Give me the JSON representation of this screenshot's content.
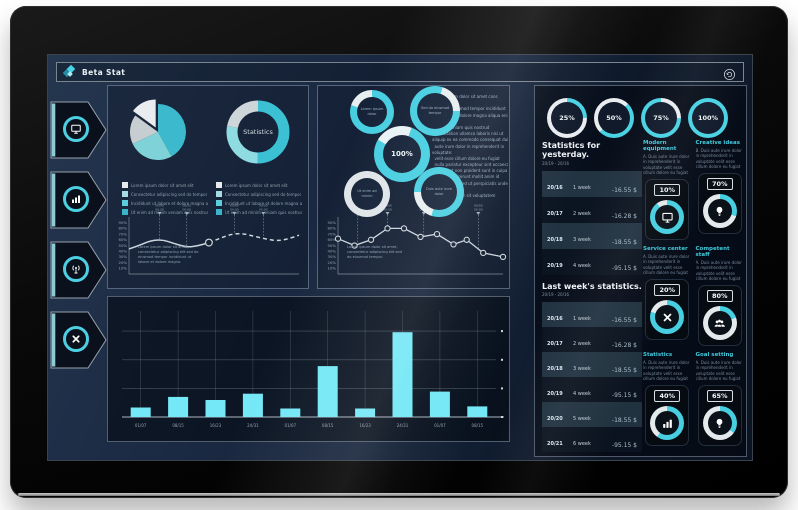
{
  "header": {
    "title": "Beta Stat"
  },
  "colors": {
    "accent_cyan": "#4ad2e6",
    "bar_cyan": "#74e8f6",
    "panel_border": "#96a8b9",
    "screen_navy": "#16243c",
    "legend_swatches": [
      "#e6eaec",
      "#a6dbe3",
      "#5ecddb",
      "#39b4c8"
    ]
  },
  "sidebar": {
    "items": [
      {
        "icon": "monitor-icon"
      },
      {
        "icon": "bar-chart-icon"
      },
      {
        "icon": "antenna-icon"
      },
      {
        "icon": "close-icon"
      }
    ]
  },
  "legends": {
    "left": [
      "Lorem ipsum dolor sit amet elit",
      "Consectetur adipiscing sed do tempor",
      "Incididunt ut labore et dolore magna aliqua",
      "Ut enim ad minim veniam quis nostrud"
    ],
    "right": [
      "Lorem ipsum dolor sit amet elit",
      "Consectetur adipiscing sed do tempor",
      "Incididunt ut labore et dolore magna aliqua",
      "Ut enim ad minim veniam quis nostrud"
    ]
  },
  "code_lines": [
    "Lorem ipsum dolor sit amet cons",
    "  elit:",
    "    sed do eiusmod tempor incididunt",
    "  ut labore et dolore magna aliqua enim",
    "ad:",
    "  minim veniam quis nostrud",
    "  exercitation ullamco laboris nisi ut",
    "aliquip ex ea commodo consequat duis",
    "  aute irure dolor in reprehenderit in",
    "voluptate:",
    "  velit esse cillum dolore eu fugiat",
    "  nulla pariatur excepteur sint occaecat",
    "  cupidatat non proident sunt in culpa",
    "qui officia deserunt mollit anim id",
    "  est laborum sed ut perspiciatis unde",
    "omnis:",
    "  iste natus error sit voluptatem",
    "accusantium"
  ],
  "chart_data": [
    {
      "id": "pie-left",
      "type": "pie",
      "values": [
        42,
        26,
        17,
        15
      ],
      "colors": [
        "#3cb9cd",
        "#7fd2d8",
        "#c7ced1",
        "#e9edef"
      ],
      "exploded_index": 3
    },
    {
      "id": "donut-statistics",
      "type": "pie",
      "donut": true,
      "label": "Statistics",
      "values": [
        50,
        28,
        22
      ],
      "colors": [
        "#3cc0d3",
        "#8fdbe2",
        "#cfd6d9"
      ]
    },
    {
      "id": "line-left",
      "type": "line",
      "ylim": [
        0,
        100
      ],
      "yticks": [
        "90%",
        "80%",
        "70%",
        "60%",
        "50%",
        "40%",
        "30%",
        "20%",
        "10%"
      ],
      "points": [
        [
          0,
          44
        ],
        [
          0.06,
          50
        ],
        [
          0.13,
          59
        ],
        [
          0.2,
          60
        ],
        [
          0.27,
          53
        ],
        [
          0.34,
          47
        ],
        [
          0.4,
          49
        ],
        [
          0.47,
          55
        ],
        [
          0.53,
          62
        ],
        [
          0.6,
          70
        ],
        [
          0.67,
          71
        ],
        [
          0.74,
          66
        ],
        [
          0.81,
          61
        ],
        [
          0.88,
          58
        ],
        [
          0.94,
          62
        ],
        [
          1,
          68
        ]
      ],
      "solid_until_index": 7,
      "marker_index": 7,
      "callouts": [
        0.18,
        0.34,
        0.62,
        0.79
      ],
      "callout_label": [
        "00/00",
        "00:00"
      ],
      "note_lines": [
        "Lorem ipsum dolor sit amet,",
        "consectetur adipiscing elit sed do",
        "eiusmod tempor incididunt ut",
        "labore et dolore magna."
      ]
    },
    {
      "id": "line-center",
      "type": "line",
      "ylim": [
        0,
        100
      ],
      "yticks": [
        "90%",
        "80%",
        "70%",
        "60%",
        "50%",
        "40%",
        "30%",
        "20%",
        "10%"
      ],
      "points": [
        [
          0,
          62
        ],
        [
          0.1,
          50
        ],
        [
          0.2,
          60
        ],
        [
          0.3,
          80
        ],
        [
          0.4,
          80
        ],
        [
          0.5,
          65
        ],
        [
          0.6,
          70
        ],
        [
          0.7,
          52
        ],
        [
          0.78,
          60
        ],
        [
          0.88,
          37
        ],
        [
          1,
          30
        ]
      ],
      "markers": true,
      "callouts": [
        0.12,
        0.3,
        0.52,
        0.85
      ],
      "callout_label": [
        "00/00",
        "00:00"
      ],
      "note_lines": [
        "Lorem ipsum dolor sit amet,",
        "consectetur adipiscing elit sed",
        "do eiusmod tempor."
      ]
    },
    {
      "id": "bars-bottom",
      "type": "bar",
      "categories": [
        "01/07",
        "08/15",
        "16/23",
        "24/31",
        "01/07",
        "08/15",
        "16/23",
        "24/31",
        "01/07",
        "08/15"
      ],
      "values": [
        9,
        19,
        16,
        22,
        8,
        48,
        8,
        80,
        24,
        10
      ],
      "ylim": [
        0,
        100
      ],
      "grid": true,
      "color": "#74e8f6",
      "title": "",
      "xlabel": "",
      "ylabel": ""
    },
    {
      "id": "gauges",
      "type": "donut-gauges",
      "values": [
        25,
        50,
        75,
        100
      ],
      "labels": [
        "25%",
        "50%",
        "75%",
        "100%"
      ]
    },
    {
      "id": "cluster",
      "type": "donut-cluster",
      "center": {
        "label": "100%",
        "pct": 78
      },
      "satellites": [
        {
          "text": "Lorem ipsum dolor",
          "style": "cyan"
        },
        {
          "text": "Sed do eiusmod tempor",
          "style": "cyan"
        },
        {
          "text": "Ut enim ad minim",
          "style": "gray"
        },
        {
          "text": "Duis aute irure dolor",
          "style": "cyan"
        }
      ]
    }
  ],
  "yesterday": {
    "title": "Statistics for yesterday.",
    "subtitle": "20/19 - 20/16",
    "rows": [
      {
        "date": "20/16",
        "week": "1 week",
        "value": "-16.55 $"
      },
      {
        "date": "20/17",
        "week": "2 week",
        "value": "-16.28 $"
      },
      {
        "date": "20/18",
        "week": "3 week",
        "value": "-18.55 $"
      },
      {
        "date": "20/19",
        "week": "4 week",
        "value": "-95.15 $"
      }
    ]
  },
  "last_week": {
    "title": "Last week's statistics.",
    "subtitle": "20/19 - 20/16",
    "rows": [
      {
        "date": "20/16",
        "week": "1 week",
        "value": "-16.55 $"
      },
      {
        "date": "20/17",
        "week": "2 week",
        "value": "-16.28 $"
      },
      {
        "date": "20/18",
        "week": "3 week",
        "value": "-18.55 $"
      },
      {
        "date": "20/19",
        "week": "4 week",
        "value": "-95.15 $"
      },
      {
        "date": "20/20",
        "week": "5 week",
        "value": "-18.55 $"
      },
      {
        "date": "20/21",
        "week": "6 week",
        "value": "-95.15 $"
      }
    ]
  },
  "cards": [
    {
      "title": "Modern equipment",
      "pct": "10%",
      "icon": "monitor-icon",
      "text": "A. Duis aute irure dolor in reprehenderit in voluptate velit esse cillum dolore eu fugiat nulla pariatur."
    },
    {
      "title": "Creative ideas",
      "pct": "70%",
      "icon": "bulb-icon",
      "text": "B. Duis aute irure dolor in reprehenderit in voluptate velit esse cillum dolore eu fugiat nulla pariatur."
    },
    {
      "title": "Service center",
      "pct": "20%",
      "icon": "close-icon",
      "text": "A. Duis aute irure dolor in reprehenderit in voluptate velit esse cillum dolore eu fugiat nulla pariatur."
    },
    {
      "title": "Competent staff",
      "pct": "80%",
      "icon": "people-icon",
      "text": "A. Duis aute irure dolor in reprehenderit in voluptate velit esse cillum dolore eu fugiat nulla pariatur."
    },
    {
      "title": "Statistics",
      "pct": "40%",
      "icon": "bar-chart-icon",
      "text": "A. Duis aute irure dolor in reprehenderit in voluptate velit esse cillum dolore eu fugiat nulla pariatur."
    },
    {
      "title": "Goal setting",
      "pct": "65%",
      "icon": "bulb-icon",
      "text": "A. Duis aute irure dolor in reprehenderit in voluptate velit esse cillum dolore eu fugiat nulla pariatur."
    }
  ]
}
